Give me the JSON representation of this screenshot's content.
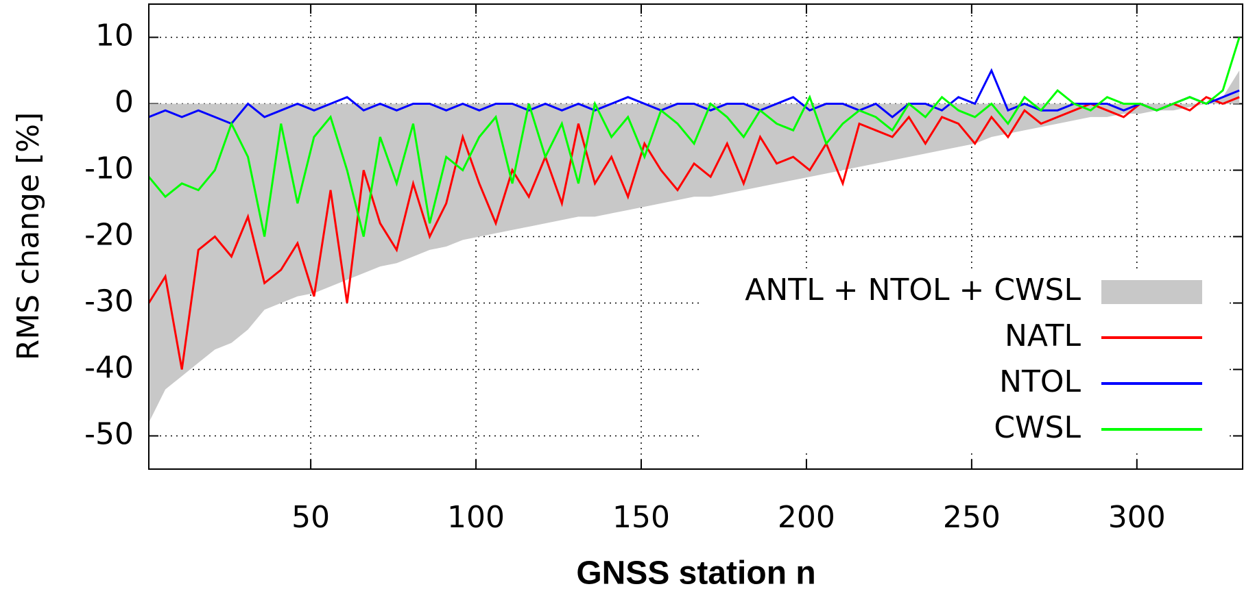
{
  "chart_data": {
    "type": "line",
    "xlabel": "GNSS station n",
    "ylabel": "RMS change [%]",
    "x": [
      1,
      6,
      11,
      16,
      21,
      26,
      31,
      36,
      41,
      46,
      51,
      56,
      61,
      66,
      71,
      76,
      81,
      86,
      91,
      96,
      101,
      106,
      111,
      116,
      121,
      126,
      131,
      136,
      141,
      146,
      151,
      156,
      161,
      166,
      171,
      176,
      181,
      186,
      191,
      196,
      201,
      206,
      211,
      216,
      221,
      226,
      231,
      236,
      241,
      246,
      251,
      256,
      261,
      266,
      271,
      276,
      281,
      286,
      291,
      296,
      301,
      306,
      311,
      316,
      321,
      326,
      331
    ],
    "series": [
      {
        "name": "ANTL + NTOL + CWSL",
        "style": "area",
        "color": "#c8c8c8",
        "values": [
          -48,
          -43,
          -41,
          -39,
          -37,
          -36,
          -34,
          -31,
          -30,
          -29,
          -28.5,
          -27.5,
          -26.5,
          -25.5,
          -24.5,
          -24,
          -23,
          -22,
          -21.5,
          -20.5,
          -20,
          -19.5,
          -19,
          -18.5,
          -18,
          -17.5,
          -17,
          -17,
          -16.5,
          -16,
          -15.5,
          -15,
          -14.5,
          -14,
          -14,
          -13.5,
          -13,
          -12.5,
          -12,
          -11.5,
          -11,
          -10.5,
          -10,
          -9.5,
          -9,
          -8.5,
          -8,
          -7.5,
          -7,
          -6.5,
          -6,
          -5,
          -4.5,
          -4,
          -3.5,
          -3,
          -2.5,
          -2,
          -2,
          -1.5,
          -1.5,
          -1,
          -1,
          -0.5,
          0,
          1,
          5
        ]
      },
      {
        "name": "NATL",
        "style": "line",
        "color": "#ff0000",
        "values": [
          -30,
          -26,
          -40,
          -22,
          -20,
          -23,
          -17,
          -27,
          -25,
          -21,
          -29,
          -13,
          -30,
          -10,
          -18,
          -22,
          -12,
          -20,
          -15,
          -5,
          -12,
          -18,
          -10,
          -14,
          -8,
          -15,
          -3,
          -12,
          -8,
          -14,
          -6,
          -10,
          -13,
          -9,
          -11,
          -6,
          -12,
          -5,
          -9,
          -8,
          -10,
          -6,
          -12,
          -3,
          -4,
          -5,
          -2,
          -6,
          -2,
          -3,
          -6,
          -2,
          -5,
          -1,
          -3,
          -2,
          -1,
          0,
          -1,
          -2,
          0,
          -1,
          0,
          -1,
          1,
          0,
          1
        ]
      },
      {
        "name": "NTOL",
        "style": "line",
        "color": "#0000ff",
        "values": [
          -2,
          -1,
          -2,
          -1,
          -2,
          -3,
          0,
          -2,
          -1,
          0,
          -1,
          0,
          1,
          -1,
          0,
          -1,
          0,
          0,
          -1,
          0,
          -1,
          0,
          0,
          -1,
          0,
          -1,
          0,
          -1,
          0,
          1,
          0,
          -1,
          0,
          0,
          -1,
          0,
          0,
          -1,
          0,
          1,
          -1,
          0,
          0,
          -1,
          0,
          -2,
          0,
          0,
          -1,
          1,
          0,
          5,
          -1,
          0,
          -1,
          -1,
          0,
          0,
          0,
          -1,
          0,
          -1,
          0,
          1,
          0,
          1,
          2
        ]
      },
      {
        "name": "CWSL",
        "style": "line",
        "color": "#00ff00",
        "values": [
          -11,
          -14,
          -12,
          -13,
          -10,
          -3,
          -8,
          -20,
          -3,
          -15,
          -5,
          -2,
          -10,
          -20,
          -5,
          -12,
          -3,
          -18,
          -8,
          -10,
          -5,
          -2,
          -12,
          0,
          -8,
          -3,
          -12,
          0,
          -5,
          -2,
          -8,
          -1,
          -3,
          -6,
          0,
          -2,
          -5,
          -1,
          -3,
          -4,
          1,
          -6,
          -3,
          -1,
          -2,
          -4,
          0,
          -2,
          1,
          -1,
          -2,
          0,
          -3,
          1,
          -1,
          2,
          0,
          -1,
          1,
          0,
          0,
          -1,
          0,
          1,
          0,
          2,
          10
        ]
      }
    ],
    "xlim": [
      1,
      332
    ],
    "ylim": [
      -55,
      15
    ],
    "xticks": [
      50,
      100,
      150,
      200,
      250,
      300
    ],
    "yticks": [
      -50,
      -40,
      -30,
      -20,
      -10,
      0,
      10
    ],
    "grid": true,
    "legend": "right"
  }
}
